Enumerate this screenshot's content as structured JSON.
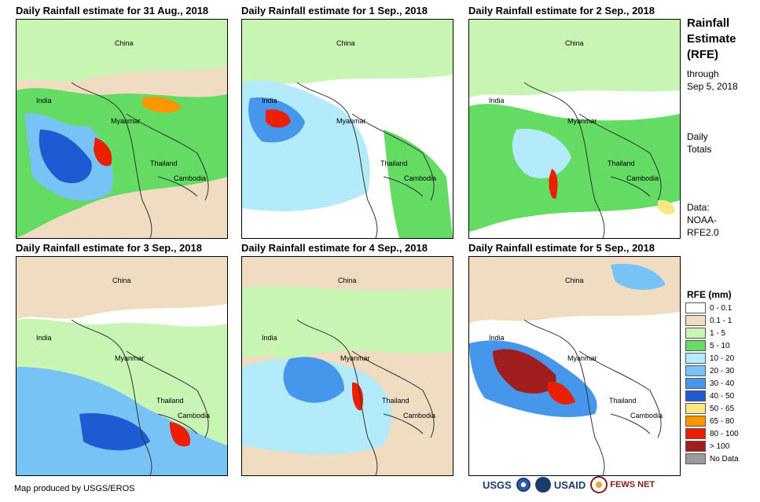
{
  "panels": [
    {
      "title": "Daily Rainfall estimate for 31 Aug., 2018",
      "labels": {
        "china": "China",
        "india": "India",
        "myanmar": "Myanmar",
        "thailand": "Thailand",
        "cambodia": "Cambodia"
      }
    },
    {
      "title": "Daily Rainfall estimate for 1 Sep., 2018",
      "labels": {
        "china": "China",
        "india": "India",
        "myanmar": "Myanmar",
        "thailand": "Thailand",
        "cambodia": "Cambodia"
      }
    },
    {
      "title": "Daily Rainfall estimate for 2 Sep., 2018",
      "labels": {
        "china": "China",
        "india": "India",
        "myanmar": "Myanmar",
        "thailand": "Thailand",
        "cambodia": "Cambodia"
      }
    },
    {
      "title": "Daily Rainfall estimate for 3 Sep., 2018",
      "labels": {
        "china": "China",
        "india": "India",
        "myanmar": "Myanmar",
        "thailand": "Thailand",
        "cambodia": "Cambodia"
      }
    },
    {
      "title": "Daily Rainfall estimate for 4 Sep., 2018",
      "labels": {
        "china": "China",
        "india": "India",
        "myanmar": "Myanmar",
        "thailand": "Thailand",
        "cambodia": "Cambodia"
      }
    },
    {
      "title": "Daily Rainfall estimate for 5 Sep., 2018",
      "labels": {
        "china": "China",
        "india": "India",
        "myanmar": "Myanmar",
        "thailand": "Thailand",
        "cambodia": "Cambodia"
      }
    }
  ],
  "sidebar": {
    "title_lines": [
      "Rainfall",
      "Estimate",
      "(RFE)"
    ],
    "through_lines": [
      "through",
      "Sep 5, 2018"
    ],
    "daily_lines": [
      "Daily",
      "Totals"
    ],
    "data_lines": [
      "Data:",
      "NOAA-",
      "RFE2.0"
    ]
  },
  "legend": {
    "title": "RFE (mm)",
    "items": [
      {
        "label": "0 - 0.1",
        "color": "#ffffff"
      },
      {
        "label": "0.1 - 1",
        "color": "#f0dcc0"
      },
      {
        "label": "1 - 5",
        "color": "#c8f5b4"
      },
      {
        "label": "5 - 10",
        "color": "#64dc64"
      },
      {
        "label": "10 - 20",
        "color": "#b4ebfa"
      },
      {
        "label": "20 - 30",
        "color": "#78c3f5"
      },
      {
        "label": "30 - 40",
        "color": "#4696eb"
      },
      {
        "label": "40 - 50",
        "color": "#1e5ad2"
      },
      {
        "label": "50 - 65",
        "color": "#fae682"
      },
      {
        "label": "65 - 80",
        "color": "#fa9600"
      },
      {
        "label": "80 - 100",
        "color": "#eb1e00"
      },
      {
        "label": "> 100",
        "color": "#a01e1e"
      },
      {
        "label": "No Data",
        "color": "#9b9b9b"
      }
    ]
  },
  "footer": {
    "credit": "Map produced by USGS/EROS"
  },
  "logos": {
    "usgs": "USGS",
    "usaid": "USAID",
    "fews": "FEWS NET"
  }
}
